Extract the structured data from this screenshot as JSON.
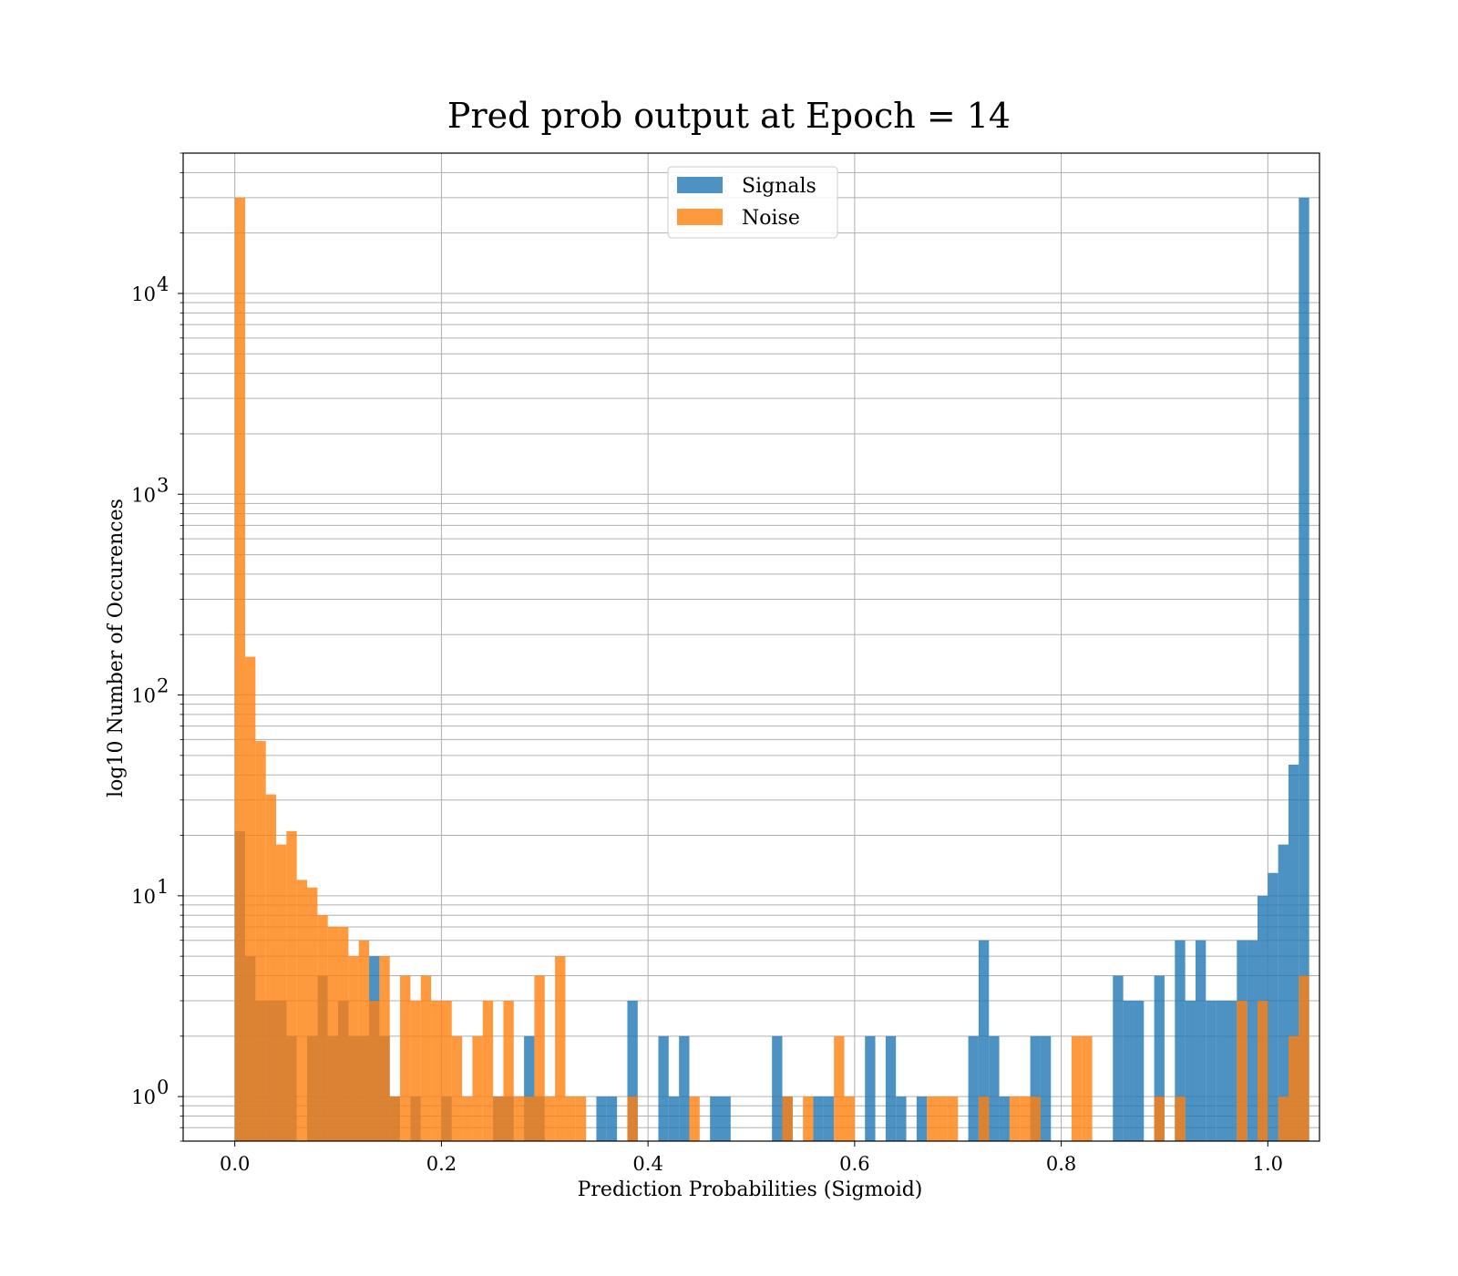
{
  "chart_data": {
    "type": "bar",
    "title": "Pred prob output at Epoch = 14",
    "xlabel": "Prediction Probabilities (Sigmoid)",
    "ylabel": "log10 Number of Occurences",
    "xlim": [
      -0.05,
      1.05
    ],
    "ylim": [
      0.6,
      50000
    ],
    "yscale": "log",
    "grid": true,
    "legend_position": "top-center",
    "x_ticks": [
      {
        "value": 0.0,
        "label": "0.0"
      },
      {
        "value": 0.2,
        "label": "0.2"
      },
      {
        "value": 0.4,
        "label": "0.4"
      },
      {
        "value": 0.6,
        "label": "0.6"
      },
      {
        "value": 0.8,
        "label": "0.8"
      },
      {
        "value": 1.0,
        "label": "1.0"
      }
    ],
    "y_ticks": [
      {
        "value": 1,
        "label": "10",
        "exp": "0"
      },
      {
        "value": 10,
        "label": "10",
        "exp": "1"
      },
      {
        "value": 100,
        "label": "10",
        "exp": "2"
      },
      {
        "value": 1000,
        "label": "10",
        "exp": "3"
      },
      {
        "value": 10000,
        "label": "10",
        "exp": "4"
      }
    ],
    "bin_width": 0.01,
    "series": [
      {
        "name": "Signals",
        "color": "#1f77b4",
        "opacity": 0.8,
        "values": [
          21,
          5,
          3,
          3,
          3,
          2,
          0,
          2,
          4,
          2,
          3,
          2,
          2,
          5,
          2,
          1,
          0,
          1,
          0,
          0,
          1,
          0,
          0,
          0,
          0,
          1,
          1,
          0,
          2,
          1,
          0,
          0,
          0,
          0,
          0,
          1,
          1,
          0,
          3,
          0,
          0,
          2,
          1,
          2,
          0,
          0,
          1,
          1,
          0,
          0,
          0,
          0,
          2,
          1,
          0,
          0,
          1,
          1,
          0,
          0,
          0,
          2,
          0,
          2,
          1,
          0,
          1,
          0,
          0,
          0,
          0,
          2,
          6,
          2,
          1,
          0,
          0,
          2,
          2,
          0,
          0,
          0,
          0,
          0,
          0,
          4,
          3,
          3,
          0,
          4,
          0,
          6,
          3,
          6,
          3,
          3,
          3,
          6,
          6,
          10,
          13,
          18,
          45,
          30000
        ]
      },
      {
        "name": "Noise",
        "color": "#ff7f0e",
        "opacity": 0.8,
        "values": [
          30000,
          155,
          59,
          32,
          18,
          21,
          12,
          11,
          8,
          7,
          7,
          5,
          6,
          3,
          5,
          1,
          4,
          3,
          4,
          3,
          3,
          2,
          1,
          2,
          3,
          1,
          3,
          1,
          1,
          4,
          1,
          5,
          1,
          1,
          0,
          0,
          0,
          0,
          1,
          0,
          0,
          0,
          0,
          0,
          1,
          0,
          0,
          0,
          0,
          0,
          0,
          0,
          0,
          1,
          0,
          1,
          0,
          0,
          2,
          1,
          0,
          0,
          0,
          0,
          0,
          0,
          0,
          1,
          1,
          1,
          0,
          0,
          1,
          0,
          0,
          1,
          1,
          1,
          0,
          0,
          0,
          2,
          2,
          0,
          0,
          0,
          0,
          0,
          0,
          1,
          0,
          1,
          0,
          0,
          0,
          0,
          0,
          3,
          0,
          3,
          0,
          1,
          2,
          4
        ]
      }
    ]
  }
}
